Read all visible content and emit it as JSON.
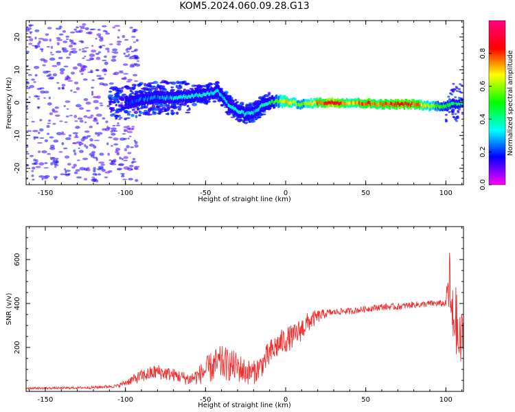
{
  "title": "KOM5.2024.060.09.28.G13",
  "chart_data": [
    {
      "type": "heatmap",
      "xlabel": "Height of straight line (km)",
      "ylabel": "Frequency (Hz)",
      "xlim": [
        -162,
        111
      ],
      "ylim": [
        -25,
        25
      ],
      "xticks": [
        -150,
        -100,
        -50,
        0,
        50,
        100
      ],
      "yticks": [
        -20,
        -10,
        0,
        10,
        20
      ],
      "colorbar": {
        "label": "Normalized spectral amplitude",
        "range": [
          0,
          1
        ],
        "ticks": [
          "0.0",
          "0.2",
          "0.4",
          "0.6",
          "0.8"
        ],
        "colormap": "gist_rainbow_r"
      },
      "ridge": [
        {
          "x": -100,
          "y": 0.0,
          "a": 0.15
        },
        {
          "x": -90,
          "y": 1.0,
          "a": 0.2
        },
        {
          "x": -80,
          "y": 1.5,
          "a": 0.25
        },
        {
          "x": -70,
          "y": 1.5,
          "a": 0.3
        },
        {
          "x": -60,
          "y": 2.0,
          "a": 0.35
        },
        {
          "x": -50,
          "y": 2.5,
          "a": 0.35
        },
        {
          "x": -42,
          "y": 3.5,
          "a": 0.35
        },
        {
          "x": -38,
          "y": 1.0,
          "a": 0.3
        },
        {
          "x": -35,
          "y": -1.0,
          "a": 0.35
        },
        {
          "x": -30,
          "y": -2.5,
          "a": 0.35
        },
        {
          "x": -25,
          "y": -3.5,
          "a": 0.35
        },
        {
          "x": -20,
          "y": -3.0,
          "a": 0.3
        },
        {
          "x": -15,
          "y": -1.0,
          "a": 0.35
        },
        {
          "x": -10,
          "y": 0.0,
          "a": 0.4
        },
        {
          "x": -5,
          "y": 0.5,
          "a": 0.55
        },
        {
          "x": 0,
          "y": 0.3,
          "a": 0.7
        },
        {
          "x": 10,
          "y": -0.5,
          "a": 0.55
        },
        {
          "x": 20,
          "y": 0.0,
          "a": 0.75
        },
        {
          "x": 30,
          "y": 0.0,
          "a": 0.9
        },
        {
          "x": 40,
          "y": 0.0,
          "a": 0.7
        },
        {
          "x": 50,
          "y": -0.2,
          "a": 0.8
        },
        {
          "x": 60,
          "y": -0.5,
          "a": 0.75
        },
        {
          "x": 70,
          "y": -0.5,
          "a": 0.85
        },
        {
          "x": 80,
          "y": -0.5,
          "a": 0.8
        },
        {
          "x": 90,
          "y": -1.0,
          "a": 0.6
        },
        {
          "x": 100,
          "y": -1.0,
          "a": 0.5
        },
        {
          "x": 110,
          "y": 0.0,
          "a": 0.45
        }
      ]
    },
    {
      "type": "line",
      "xlabel": "Height of straight line (km)",
      "ylabel": "SNR (v/v)",
      "xlim": [
        -162,
        111
      ],
      "ylim": [
        0,
        750
      ],
      "xticks": [
        -150,
        -100,
        -50,
        0,
        50,
        100
      ],
      "yticks": [
        200,
        400,
        600
      ],
      "color": "#f03030",
      "series": [
        {
          "x": [
            -162,
            -140,
            -120,
            -105,
            -100,
            -90,
            -80,
            -70,
            -60,
            -55,
            -50,
            -45,
            -40,
            -35,
            -30,
            -25,
            -20,
            -15,
            -10,
            -5,
            0,
            5,
            10,
            15,
            20,
            25,
            30,
            35,
            40,
            45,
            50,
            55,
            60,
            65,
            70,
            75,
            80,
            85,
            90,
            95,
            100,
            102,
            104,
            106,
            108,
            111
          ],
          "y": [
            15,
            15,
            18,
            25,
            40,
            70,
            90,
            75,
            55,
            70,
            95,
            115,
            130,
            120,
            110,
            90,
            85,
            120,
            170,
            210,
            235,
            250,
            285,
            320,
            340,
            355,
            360,
            365,
            365,
            370,
            375,
            380,
            385,
            385,
            385,
            390,
            395,
            395,
            400,
            400,
            400,
            500,
            300,
            350,
            200,
            260
          ],
          "noise": [
            5,
            5,
            6,
            8,
            15,
            30,
            35,
            30,
            30,
            40,
            60,
            75,
            80,
            75,
            70,
            60,
            55,
            55,
            65,
            60,
            60,
            55,
            55,
            45,
            30,
            20,
            15,
            15,
            15,
            15,
            15,
            15,
            15,
            15,
            15,
            15,
            15,
            15,
            15,
            15,
            15,
            180,
            180,
            150,
            150,
            120
          ]
        }
      ]
    }
  ]
}
